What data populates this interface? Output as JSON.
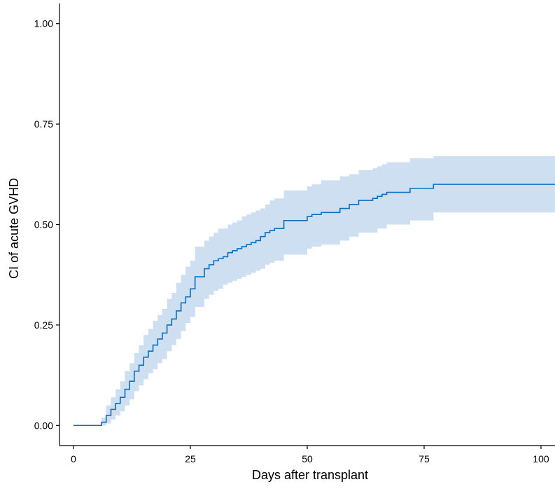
{
  "chart_data": {
    "type": "line",
    "title": "",
    "xlabel": "Days after transplant",
    "ylabel": "CI of acute GVHD",
    "xlim": [
      -3,
      103
    ],
    "ylim": [
      -0.05,
      1.05
    ],
    "x_ticks": [
      0,
      25,
      50,
      75,
      100
    ],
    "x_tick_labels": [
      "0",
      "25",
      "50",
      "75",
      "100"
    ],
    "y_ticks": [
      0.0,
      0.25,
      0.5,
      0.75,
      1.0
    ],
    "y_tick_labels": [
      "0.00",
      "0.25",
      "0.50",
      "0.75",
      "1.00"
    ],
    "grid": false,
    "legend": "none",
    "step": true,
    "colors": {
      "line": "#0f6fba",
      "band": "#cddff0",
      "axis": "#000000"
    },
    "series": [
      {
        "x": [
          0,
          6,
          7,
          8,
          9,
          10,
          11,
          12,
          13,
          14,
          15,
          16,
          17,
          18,
          19,
          20,
          21,
          22,
          23,
          24,
          25,
          26,
          28,
          29,
          30,
          31,
          32,
          33,
          34,
          35,
          36,
          37,
          38,
          39,
          40,
          41,
          42,
          43,
          45,
          50,
          51,
          53,
          57,
          59,
          61,
          64,
          65,
          66,
          67,
          72,
          77,
          103
        ],
        "y": [
          0.0,
          0.008,
          0.025,
          0.04,
          0.055,
          0.07,
          0.09,
          0.11,
          0.135,
          0.15,
          0.17,
          0.185,
          0.2,
          0.215,
          0.23,
          0.25,
          0.265,
          0.285,
          0.305,
          0.32,
          0.34,
          0.37,
          0.39,
          0.4,
          0.41,
          0.415,
          0.42,
          0.43,
          0.435,
          0.44,
          0.445,
          0.45,
          0.455,
          0.46,
          0.47,
          0.48,
          0.485,
          0.49,
          0.51,
          0.52,
          0.525,
          0.53,
          0.54,
          0.55,
          0.56,
          0.565,
          0.57,
          0.575,
          0.58,
          0.59,
          0.6,
          0.6
        ],
        "lower": [
          0.0,
          0.0,
          0.005,
          0.015,
          0.025,
          0.035,
          0.05,
          0.065,
          0.085,
          0.1,
          0.115,
          0.13,
          0.14,
          0.155,
          0.165,
          0.185,
          0.2,
          0.215,
          0.235,
          0.255,
          0.27,
          0.295,
          0.315,
          0.325,
          0.335,
          0.34,
          0.35,
          0.355,
          0.36,
          0.365,
          0.37,
          0.375,
          0.38,
          0.385,
          0.39,
          0.4,
          0.405,
          0.41,
          0.425,
          0.44,
          0.445,
          0.45,
          0.46,
          0.47,
          0.48,
          0.48,
          0.49,
          0.49,
          0.5,
          0.51,
          0.53,
          0.53
        ],
        "upper": [
          0.0,
          0.02,
          0.05,
          0.07,
          0.09,
          0.11,
          0.135,
          0.155,
          0.18,
          0.2,
          0.225,
          0.24,
          0.26,
          0.275,
          0.29,
          0.315,
          0.33,
          0.355,
          0.375,
          0.395,
          0.41,
          0.445,
          0.46,
          0.47,
          0.48,
          0.49,
          0.49,
          0.5,
          0.505,
          0.51,
          0.52,
          0.525,
          0.53,
          0.535,
          0.54,
          0.55,
          0.56,
          0.565,
          0.585,
          0.595,
          0.6,
          0.61,
          0.62,
          0.625,
          0.635,
          0.64,
          0.645,
          0.65,
          0.655,
          0.665,
          0.67,
          0.67
        ]
      }
    ]
  }
}
